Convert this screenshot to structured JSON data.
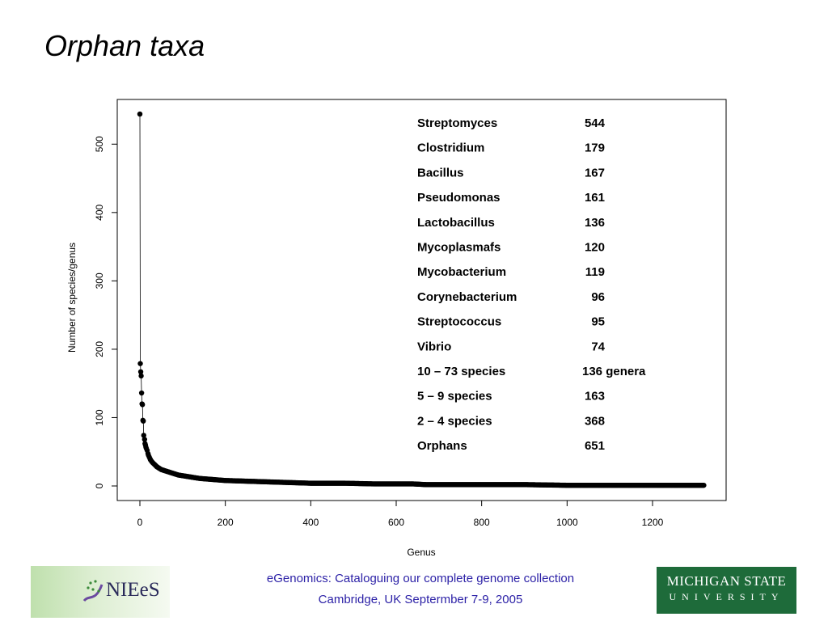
{
  "slide": {
    "title": "Orphan taxa"
  },
  "chart_data": {
    "type": "scatter",
    "xlabel": "Genus",
    "ylabel": "Number of species/genus",
    "xlim": [
      0,
      1320
    ],
    "ylim": [
      0,
      544
    ],
    "x_ticks": [
      0,
      200,
      400,
      600,
      800,
      1000,
      1200
    ],
    "y_ticks": [
      0,
      100,
      200,
      300,
      400,
      500
    ],
    "grid": false,
    "top_values": [
      544,
      179,
      167,
      161,
      136,
      120,
      119,
      96,
      95,
      74
    ],
    "tail_values_note": "remaining genera decline from about 70 to 1 species",
    "tail_points": [
      [
        11,
        68
      ],
      [
        12,
        62
      ],
      [
        13,
        60
      ],
      [
        14,
        57
      ],
      [
        15,
        55
      ],
      [
        17,
        52
      ],
      [
        20,
        45
      ],
      [
        25,
        38
      ],
      [
        30,
        34
      ],
      [
        35,
        31
      ],
      [
        40,
        28
      ],
      [
        50,
        24
      ],
      [
        60,
        22
      ],
      [
        70,
        20
      ],
      [
        80,
        18
      ],
      [
        90,
        16
      ],
      [
        100,
        15
      ],
      [
        120,
        13
      ],
      [
        140,
        11
      ],
      [
        160,
        10
      ],
      [
        180,
        9
      ],
      [
        200,
        8
      ],
      [
        250,
        7
      ],
      [
        300,
        6
      ],
      [
        350,
        5
      ],
      [
        400,
        4
      ],
      [
        480,
        4
      ],
      [
        550,
        3
      ],
      [
        640,
        3
      ],
      [
        670,
        2
      ],
      [
        800,
        2
      ],
      [
        900,
        2
      ],
      [
        1000,
        1
      ],
      [
        1100,
        1
      ],
      [
        1200,
        1
      ],
      [
        1320,
        1
      ]
    ],
    "table": [
      {
        "name": "Streptomyces",
        "value": "544"
      },
      {
        "name": "Clostridium",
        "value": "179"
      },
      {
        "name": "Bacillus",
        "value": "167"
      },
      {
        "name": "Pseudomonas",
        "value": "161"
      },
      {
        "name": "Lactobacillus",
        "value": "136"
      },
      {
        "name": "Mycoplasmafs",
        "value": "120"
      },
      {
        "name": "Mycobacterium",
        "value": "119"
      },
      {
        "name": "Corynebacterium",
        "value": "96"
      },
      {
        "name": "Streptococcus",
        "value": "95"
      },
      {
        "name": "Vibrio",
        "value": "74"
      },
      {
        "name": "10 – 73 species",
        "value": "136 genera"
      },
      {
        "name": "5 – 9 species",
        "value": "163"
      },
      {
        "name": "2 – 4 species",
        "value": "368"
      },
      {
        "name": "Orphans",
        "value": "651"
      }
    ]
  },
  "footer": {
    "left_logo_text": "NIEeS",
    "line1": "eGenomics: Cataloguing our complete genome collection",
    "line2": "Cambridge, UK Septermber 7-9, 2005",
    "right_logo_line1": "MICHIGAN STATE",
    "right_logo_line2": "UNIVERSITY"
  },
  "colors": {
    "footer_text": "#2a1fa6",
    "msu_green": "#1e6b3a"
  }
}
